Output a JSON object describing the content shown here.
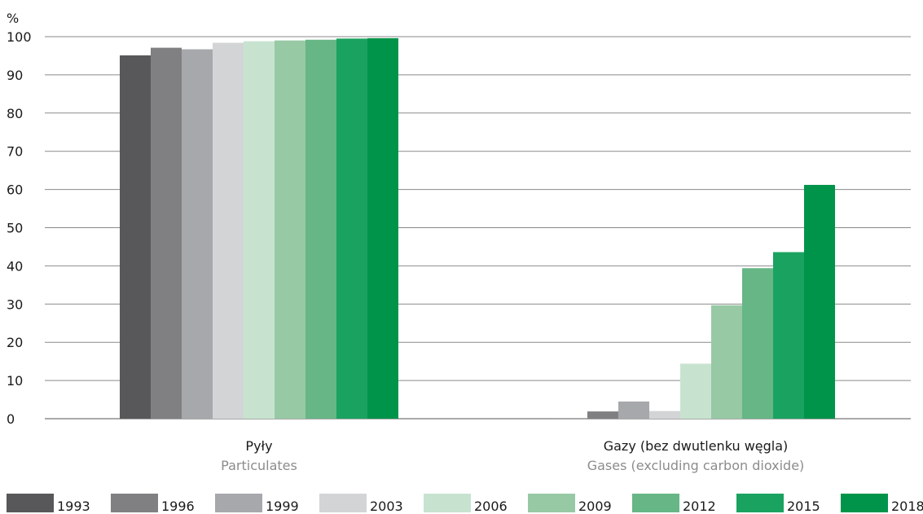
{
  "chart_data": {
    "type": "bar",
    "unit_label": "%",
    "ylim": [
      0,
      100
    ],
    "yticks": [
      0,
      10,
      20,
      30,
      40,
      50,
      60,
      70,
      80,
      90,
      100
    ],
    "grid": true,
    "legend_position": "bottom",
    "categories": [
      {
        "label": "Pyły",
        "sublabel": "Particulates"
      },
      {
        "label": "Gazy (bez dwutlenku węgla)",
        "sublabel": "Gases (excluding carbon dioxide)"
      }
    ],
    "series": [
      {
        "name": "1993",
        "color": "#58585a",
        "values": [
          95.1,
          0.1
        ]
      },
      {
        "name": "1996",
        "color": "#808083",
        "values": [
          97.1,
          1.9
        ]
      },
      {
        "name": "1999",
        "color": "#a7a8ab",
        "values": [
          96.7,
          4.5
        ]
      },
      {
        "name": "2003",
        "color": "#d3d4d6",
        "values": [
          98.4,
          2.0
        ]
      },
      {
        "name": "2006",
        "color": "#c7e3d0",
        "values": [
          98.8,
          14.4
        ]
      },
      {
        "name": "2009",
        "color": "#97c9a5",
        "values": [
          99.0,
          29.7
        ]
      },
      {
        "name": "2012",
        "color": "#67b686",
        "values": [
          99.2,
          39.4
        ]
      },
      {
        "name": "2015",
        "color": "#1aa261",
        "values": [
          99.5,
          43.6
        ]
      },
      {
        "name": "2018",
        "color": "#00944a",
        "values": [
          99.6,
          61.2
        ]
      }
    ]
  }
}
